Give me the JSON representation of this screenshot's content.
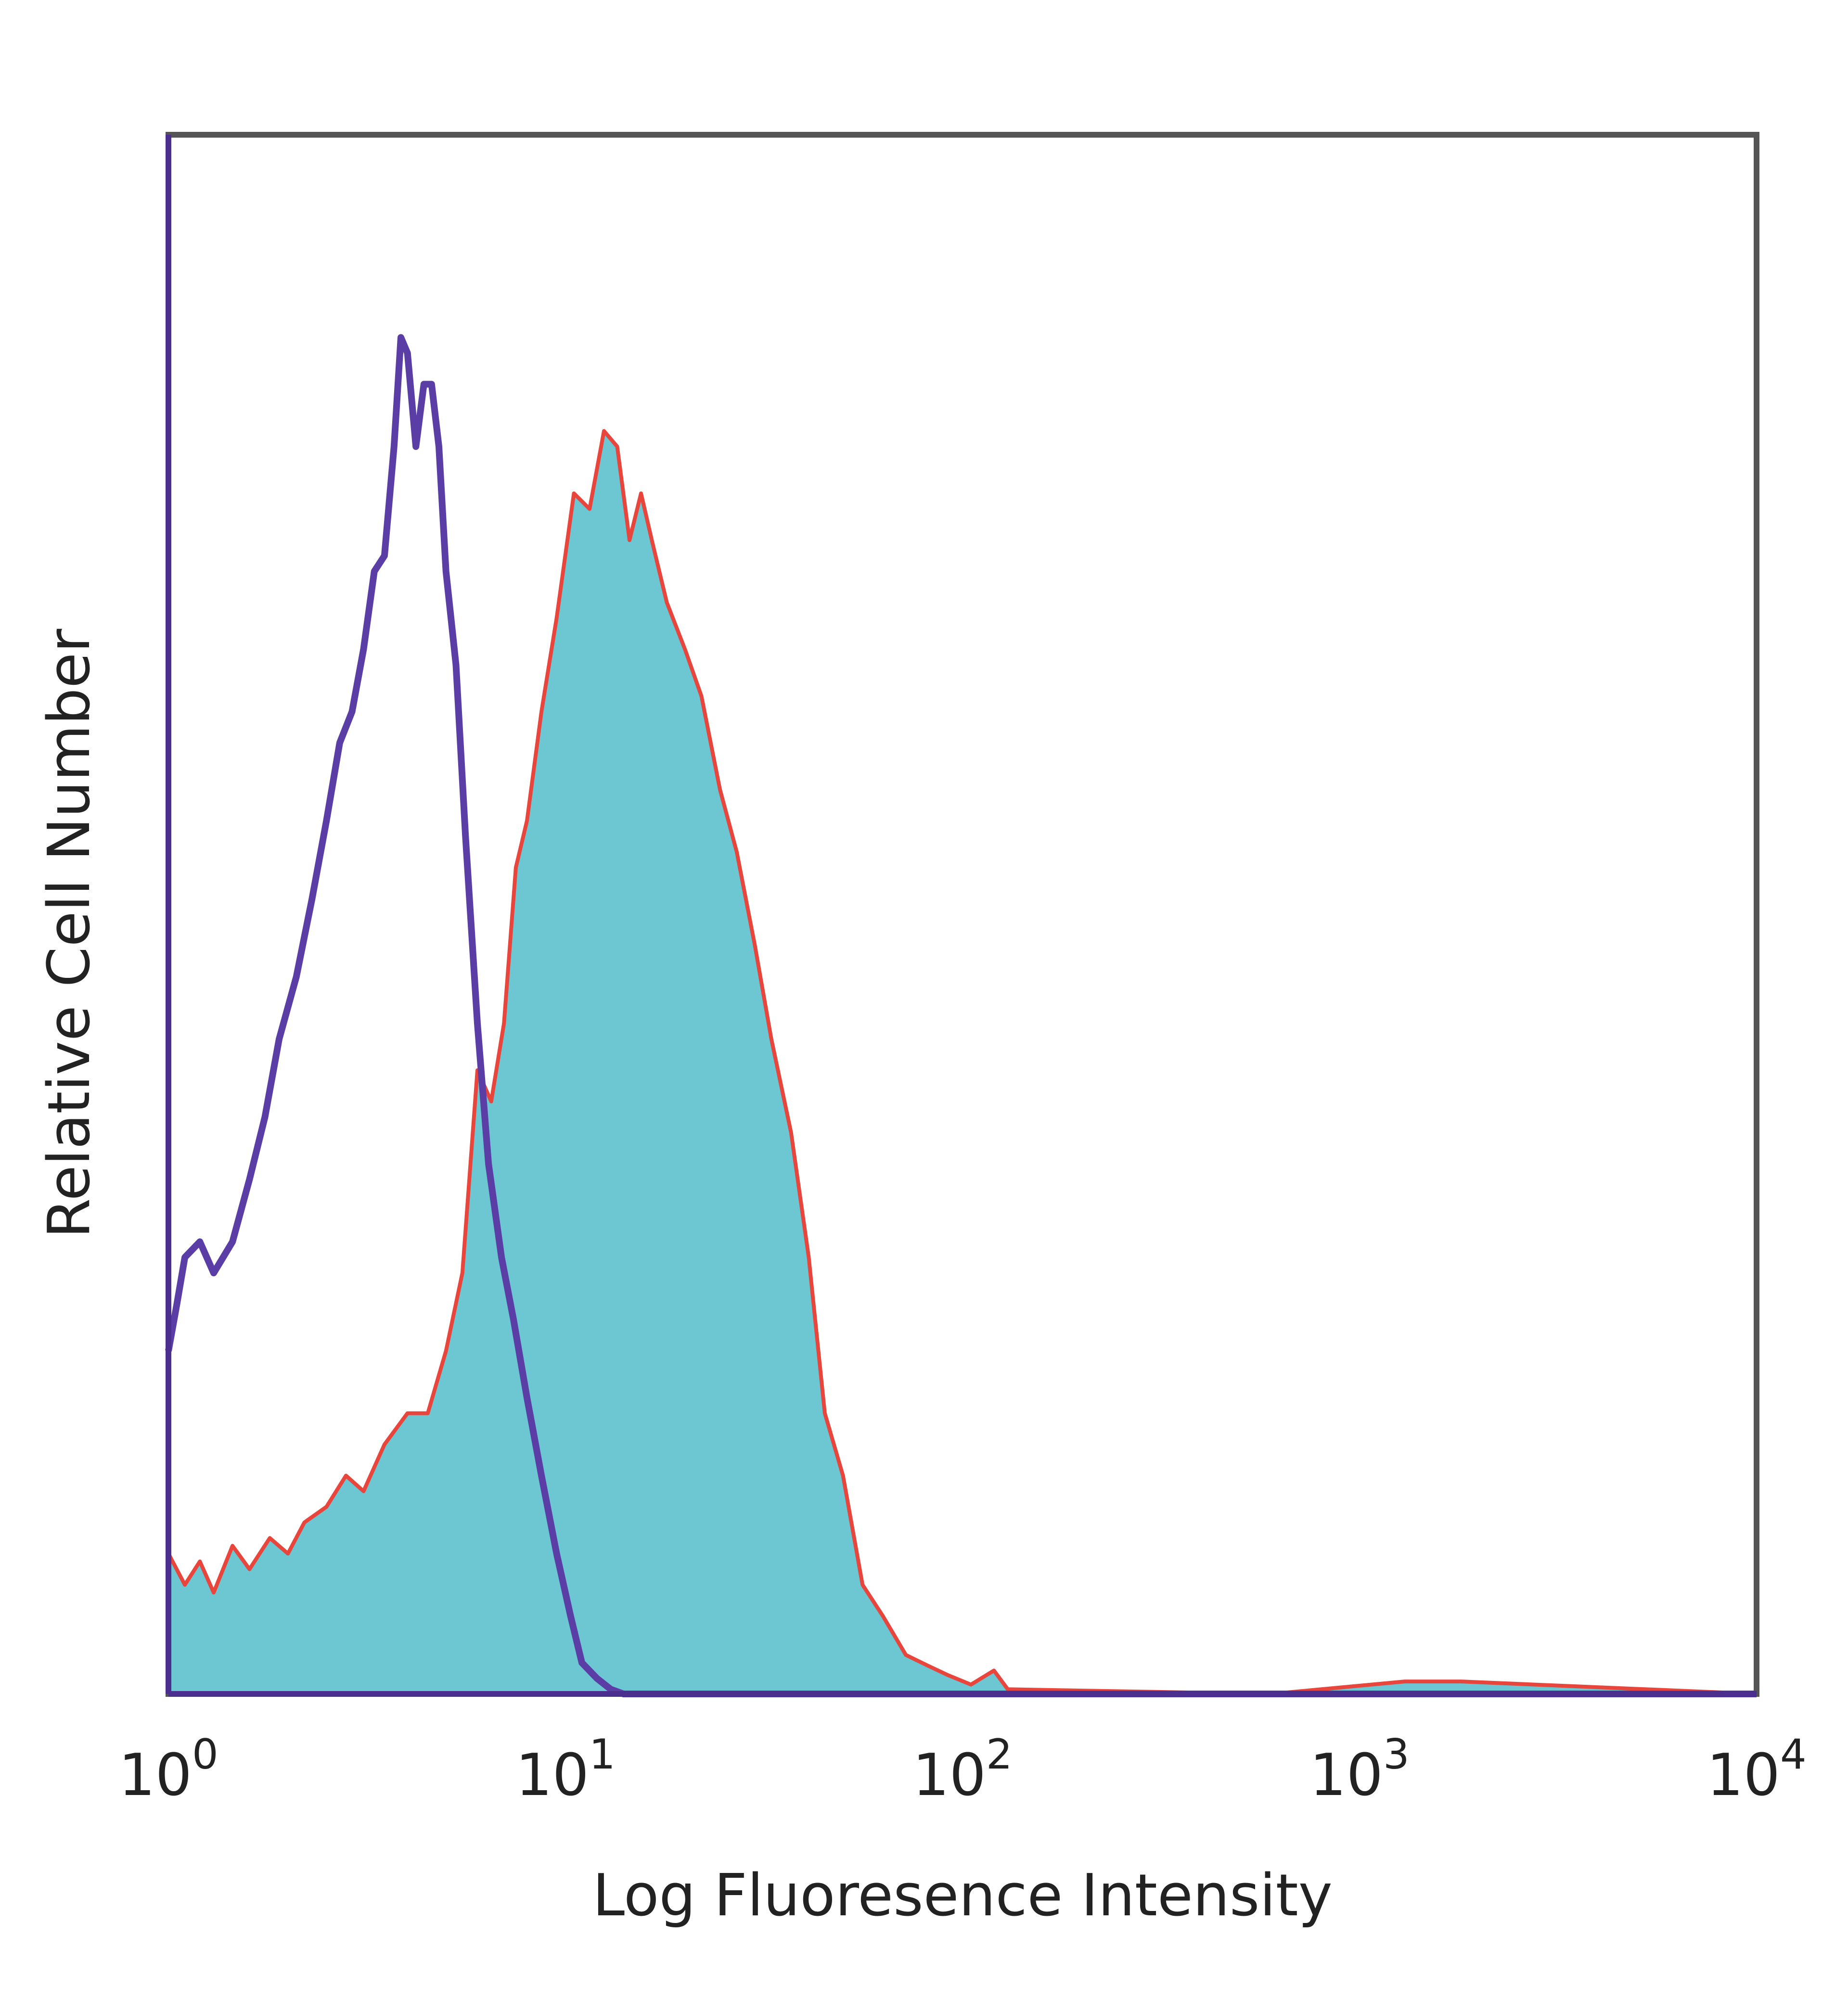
{
  "chart_data": {
    "type": "area",
    "xlabel": "Log Fluoresence Intensity",
    "ylabel": "Relative Cell Number",
    "xscale": "log",
    "xlim": [
      1,
      10000
    ],
    "ylim": [
      0,
      100
    ],
    "grid": false,
    "legend": "none",
    "x_ticks": [
      {
        "value": 1,
        "base": "10",
        "exp": "0"
      },
      {
        "value": 10,
        "base": "10",
        "exp": "1"
      },
      {
        "value": 100,
        "base": "10",
        "exp": "2"
      },
      {
        "value": 1000,
        "base": "10",
        "exp": "3"
      },
      {
        "value": 10000,
        "base": "10",
        "exp": "4"
      }
    ],
    "series": [
      {
        "style": "filled",
        "color": "#6cc7d3",
        "outline_color": "#e8453c",
        "x": [
          1.0,
          1.1,
          1.2,
          1.3,
          1.45,
          1.6,
          1.8,
          2.0,
          2.2,
          2.5,
          2.8,
          3.1,
          3.5,
          4.0,
          4.5,
          5.0,
          5.5,
          6.0,
          6.5,
          7.0,
          7.5,
          8.0,
          8.7,
          9.5,
          10.5,
          11.5,
          12.5,
          13.5,
          14.5,
          15.5,
          16.5,
          18.0,
          20.0,
          22.0,
          24.5,
          27.0,
          30.0,
          33.0,
          37.0,
          41.0,
          45.0,
          50.0,
          56.0,
          63.0,
          72.0,
          82.0,
          92.0,
          105.0,
          120.0,
          130.0,
          600.0,
          1300.0,
          1800.0,
          10000.0
        ],
        "y": [
          9,
          7,
          8.5,
          6.5,
          9.5,
          8,
          10,
          9,
          11,
          12,
          14,
          13,
          16,
          18,
          18,
          22,
          27,
          40,
          38,
          43,
          53,
          56,
          63,
          69,
          77,
          76,
          81,
          80,
          74,
          77,
          74,
          70,
          67,
          64,
          58,
          54,
          48,
          42,
          36,
          28,
          18,
          14,
          7,
          5,
          2.5,
          1.8,
          1.2,
          0.6,
          1.5,
          0.3,
          0,
          0.8,
          0.8,
          0
        ]
      },
      {
        "style": "line",
        "color": "#5b3da6",
        "x": [
          1.0,
          1.05,
          1.1,
          1.2,
          1.3,
          1.45,
          1.6,
          1.75,
          1.9,
          2.1,
          2.3,
          2.5,
          2.7,
          2.9,
          3.1,
          3.3,
          3.5,
          3.7,
          3.85,
          4.0,
          4.2,
          4.4,
          4.6,
          4.8,
          5.0,
          5.3,
          5.6,
          6.0,
          6.4,
          6.9,
          7.4,
          8.0,
          8.7,
          9.5,
          10.3,
          11.0,
          12.0,
          13.0,
          14.0,
          20.0,
          10000.0
        ],
        "y": [
          22,
          25,
          28,
          29,
          27,
          29,
          33,
          37,
          42,
          46,
          51,
          56,
          61,
          63,
          67,
          72,
          73,
          80,
          87,
          86,
          80,
          84,
          84,
          80,
          72,
          66,
          55,
          43,
          34,
          28,
          24,
          19,
          14,
          9,
          5,
          2,
          1,
          0.3,
          0,
          0,
          0
        ]
      }
    ]
  }
}
